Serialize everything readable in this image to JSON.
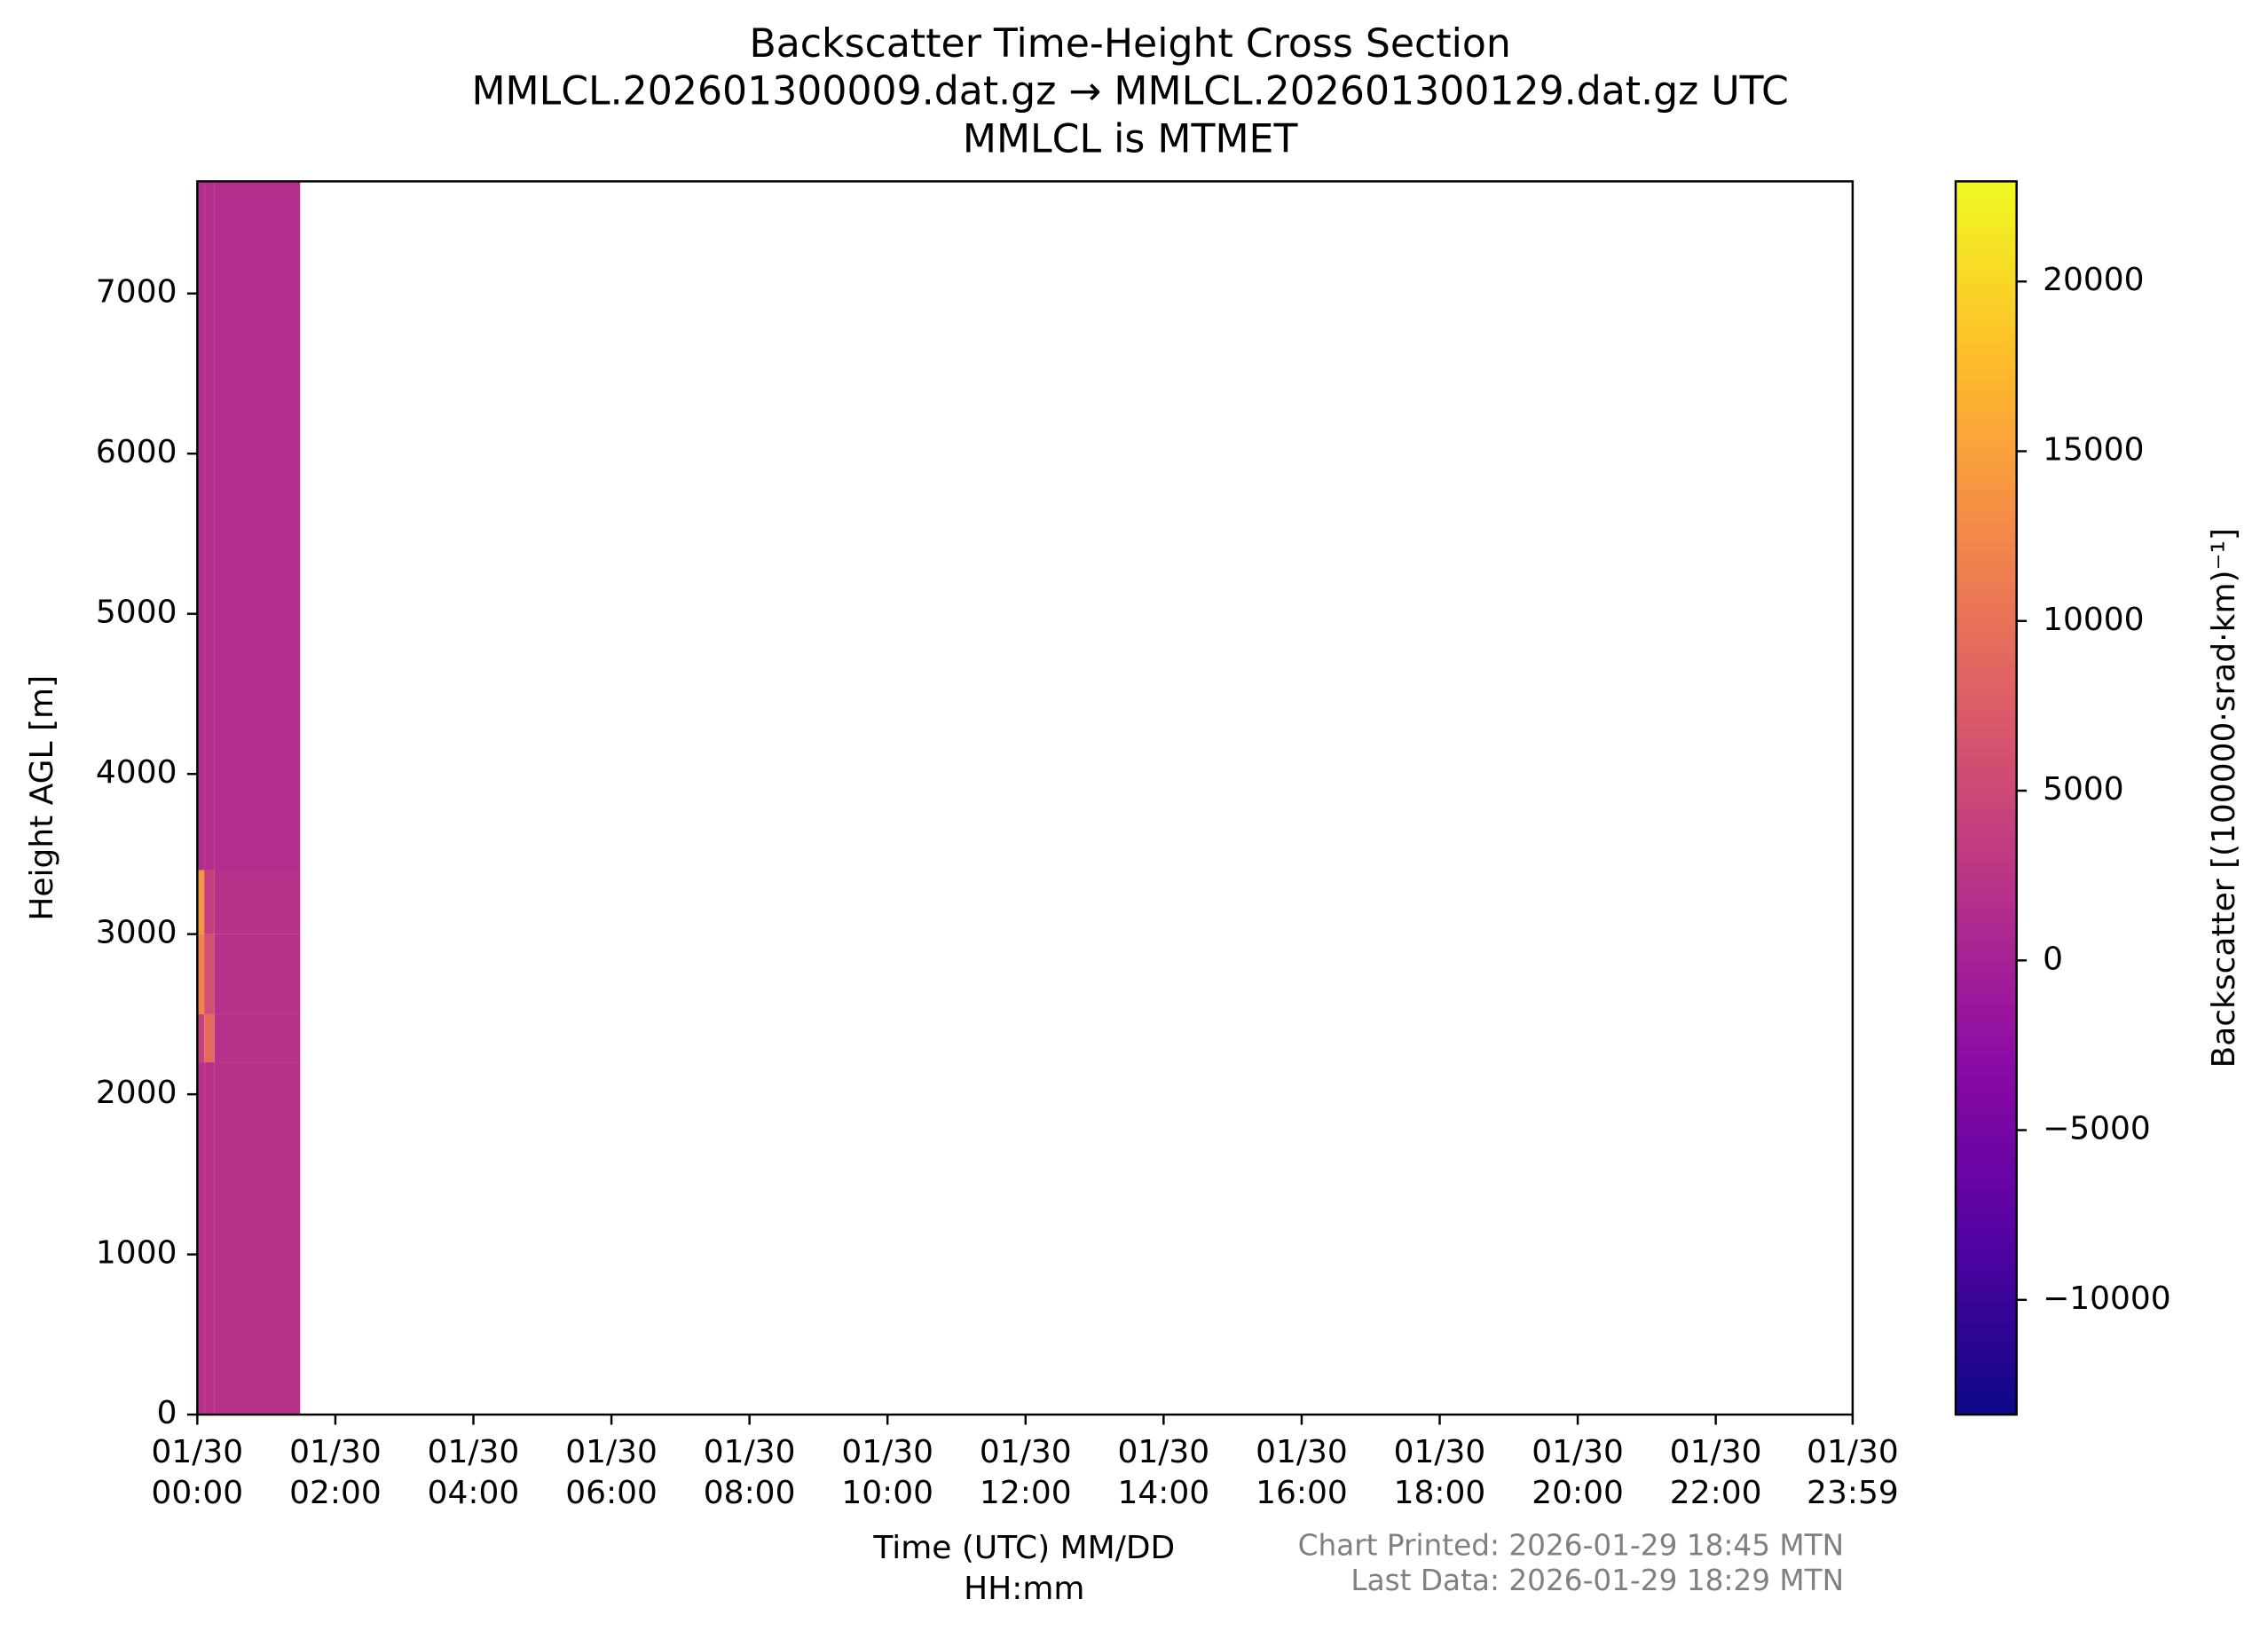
{
  "chart_data": {
    "type": "heatmap",
    "title": "Backscatter Time-Height Cross Section\nMMLCL.202601300009.dat.gz → MMLCL.202601300129.dat.gz UTC\nMMLCL is MTMET",
    "xlabel": "Time (UTC) MM/DD\nHH:mm",
    "ylabel": "Height AGL [m]",
    "colorbar_label": "Backscatter [(100000·srad·km)⁻¹]",
    "footnotes": [
      "Chart Printed: 2026-01-29 18:45 MTN",
      "Last Data: 2026-01-29 18:29 MTN"
    ],
    "colormap": "plasma",
    "xlim": [
      0,
      23.983
    ],
    "xticks": [
      {
        "value": 0,
        "label": "01/30\n00:00"
      },
      {
        "value": 2,
        "label": "01/30\n02:00"
      },
      {
        "value": 4,
        "label": "01/30\n04:00"
      },
      {
        "value": 6,
        "label": "01/30\n06:00"
      },
      {
        "value": 8,
        "label": "01/30\n08:00"
      },
      {
        "value": 10,
        "label": "01/30\n10:00"
      },
      {
        "value": 12,
        "label": "01/30\n12:00"
      },
      {
        "value": 14,
        "label": "01/30\n14:00"
      },
      {
        "value": 16,
        "label": "01/30\n16:00"
      },
      {
        "value": 18,
        "label": "01/30\n18:00"
      },
      {
        "value": 20,
        "label": "01/30\n20:00"
      },
      {
        "value": 22,
        "label": "01/30\n22:00"
      },
      {
        "value": 23.983,
        "label": "01/30\n23:59"
      }
    ],
    "ylim": [
      0,
      7700
    ],
    "yticks": [
      0,
      1000,
      2000,
      3000,
      4000,
      5000,
      6000,
      7000
    ],
    "x_edges": [
      0,
      0.1,
      0.25,
      1.49
    ],
    "y_edges": [
      0,
      2200,
      2500,
      3000,
      3400,
      7700
    ],
    "values": [
      [
        2000,
        2000,
        2000
      ],
      [
        4000,
        9000,
        2000
      ],
      [
        12000,
        6000,
        2000
      ],
      [
        14000,
        4000,
        2000
      ],
      [
        1500,
        1500,
        1500
      ]
    ],
    "clim": [
      -13380,
      22950
    ],
    "cticks": [
      {
        "value": -10000,
        "label": "−10000"
      },
      {
        "value": -5000,
        "label": "−5000"
      },
      0,
      5000,
      10000,
      15000,
      20000
    ]
  }
}
